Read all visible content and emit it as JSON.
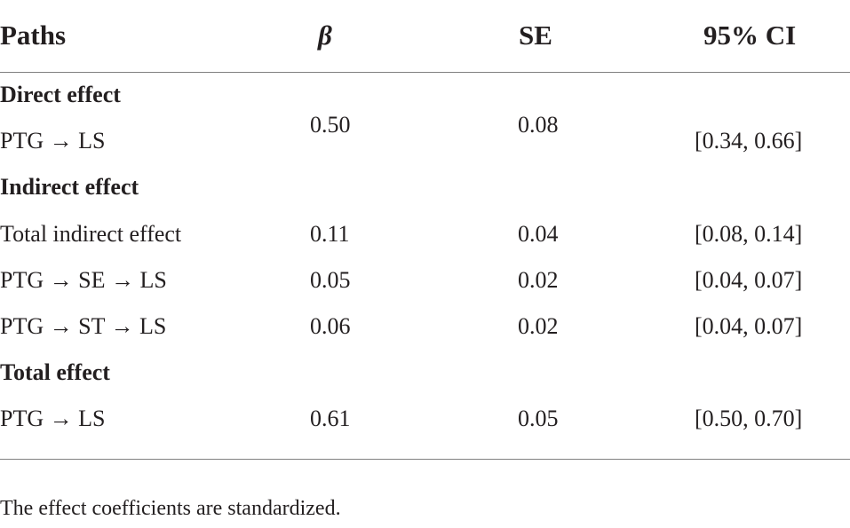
{
  "table": {
    "headers": {
      "paths": "Paths",
      "beta": "β",
      "se": "SE",
      "ci": "95% CI"
    },
    "sections": [
      {
        "title": "Direct effect",
        "rows": [
          {
            "path": "PTG → LS",
            "beta": "0.50",
            "se": "0.08",
            "ci": "[0.34, 0.66]"
          }
        ]
      },
      {
        "title": "Indirect effect",
        "rows": [
          {
            "path": "Total indirect effect",
            "beta": "0.11",
            "se": "0.04",
            "ci": "[0.08, 0.14]"
          },
          {
            "path": "PTG → SE → LS",
            "beta": "0.05",
            "se": "0.02",
            "ci": "[0.04, 0.07]"
          },
          {
            "path": "PTG → ST → LS",
            "beta": "0.06",
            "se": "0.02",
            "ci": "[0.04, 0.07]"
          }
        ]
      },
      {
        "title": "Total effect",
        "rows": [
          {
            "path": "PTG → LS",
            "beta": "0.61",
            "se": "0.05",
            "ci": "[0.50, 0.70]"
          }
        ]
      }
    ],
    "note": "The effect coefficients are standardized."
  }
}
